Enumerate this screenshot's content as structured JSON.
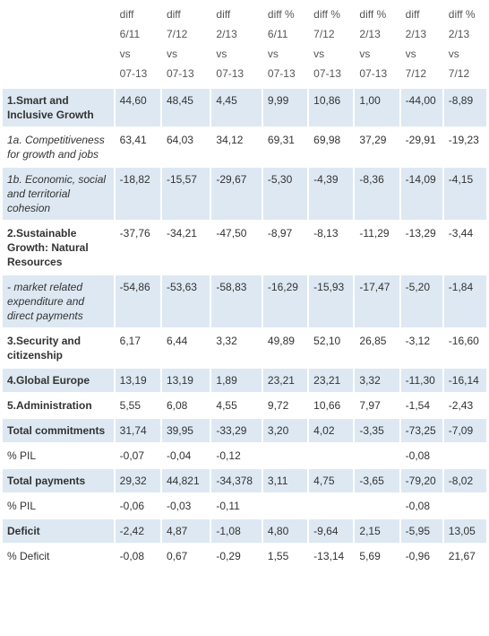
{
  "columns": [
    {
      "line1": "diff",
      "line2": "6/11",
      "line3": "vs",
      "line4": "07-13"
    },
    {
      "line1": "diff",
      "line2": "7/12",
      "line3": "vs",
      "line4": "07-13"
    },
    {
      "line1": "diff",
      "line2": "2/13",
      "line3": "vs",
      "line4": "07-13"
    },
    {
      "line1": "diff %",
      "line2": "6/11",
      "line3": "vs",
      "line4": "07-13"
    },
    {
      "line1": "diff %",
      "line2": "7/12",
      "line3": "vs",
      "line4": "07-13"
    },
    {
      "line1": "diff %",
      "line2": "2/13",
      "line3": "vs",
      "line4": "07-13"
    },
    {
      "line1": "diff",
      "line2": "2/13",
      "line3": "vs",
      "line4": "7/12"
    },
    {
      "line1": "diff %",
      "line2": "2/13",
      "line3": "vs",
      "line4": "7/12"
    }
  ],
  "rows": [
    {
      "label": "1.Smart and Inclusive Growth",
      "style": "bold",
      "values": [
        "44,60",
        "48,45",
        "4,45",
        "9,99",
        "10,86",
        "1,00",
        "-44,00",
        "-8,89"
      ]
    },
    {
      "label": "1a. Competitiveness for growth and jobs",
      "style": "italic",
      "values": [
        "63,41",
        "64,03",
        "34,12",
        "69,31",
        "69,98",
        "37,29",
        "-29,91",
        "-19,23"
      ]
    },
    {
      "label": "1b. Economic, social and territorial cohesion",
      "style": "italic",
      "values": [
        "-18,82",
        "-15,57",
        "-29,67",
        "-5,30",
        "-4,39",
        "-8,36",
        "-14,09",
        "-4,15"
      ]
    },
    {
      "label": "2.Sustainable Growth: Natural Resources",
      "style": "bold",
      "values": [
        "-37,76",
        "-34,21",
        "-47,50",
        "-8,97",
        "-8,13",
        "-11,29",
        "-13,29",
        "-3,44"
      ]
    },
    {
      "label": "- market related expenditure and direct payments",
      "style": "italic",
      "values": [
        "-54,86",
        "-53,63",
        "-58,83",
        "-16,29",
        "-15,93",
        "-17,47",
        "-5,20",
        "-1,84"
      ]
    },
    {
      "label": "3.Security and citizenship",
      "style": "bold",
      "values": [
        "6,17",
        "6,44",
        "3,32",
        "49,89",
        "52,10",
        "26,85",
        "-3,12",
        "-16,60"
      ]
    },
    {
      "label": "4.Global Europe",
      "style": "bold",
      "values": [
        "13,19",
        "13,19",
        "1,89",
        "23,21",
        "23,21",
        "3,32",
        "-11,30",
        "-16,14"
      ]
    },
    {
      "label": "5.Administration",
      "style": "bold",
      "values": [
        "5,55",
        "6,08",
        "4,55",
        "9,72",
        "10,66",
        "7,97",
        "-1,54",
        "-2,43"
      ]
    },
    {
      "label": "Total commitments",
      "style": "bold",
      "values": [
        "31,74",
        "39,95",
        "-33,29",
        "3,20",
        "4,02",
        "-3,35",
        "-73,25",
        "-7,09"
      ]
    },
    {
      "label": "% PIL",
      "style": "normal",
      "values": [
        "-0,07",
        "-0,04",
        "-0,12",
        "",
        "",
        "",
        "-0,08",
        ""
      ]
    },
    {
      "label": "Total payments",
      "style": "bold",
      "values": [
        "29,32",
        "44,821",
        "-34,378",
        "3,11",
        "4,75",
        "-3,65",
        "-79,20",
        "-8,02"
      ]
    },
    {
      "label": "% PIL",
      "style": "normal",
      "values": [
        "-0,06",
        "-0,03",
        "-0,11",
        "",
        "",
        "",
        "-0,08",
        ""
      ]
    },
    {
      "label": "Deficit",
      "style": "bold",
      "values": [
        "-2,42",
        "4,87",
        "-1,08",
        "4,80",
        "-9,64",
        "2,15",
        "-5,95",
        "13,05"
      ]
    },
    {
      "label": "% Deficit",
      "style": "normal",
      "values": [
        "-0,08",
        "0,67",
        "-0,29",
        "1,55",
        "-13,14",
        "5,69",
        "-0,96",
        "21,67"
      ]
    }
  ]
}
